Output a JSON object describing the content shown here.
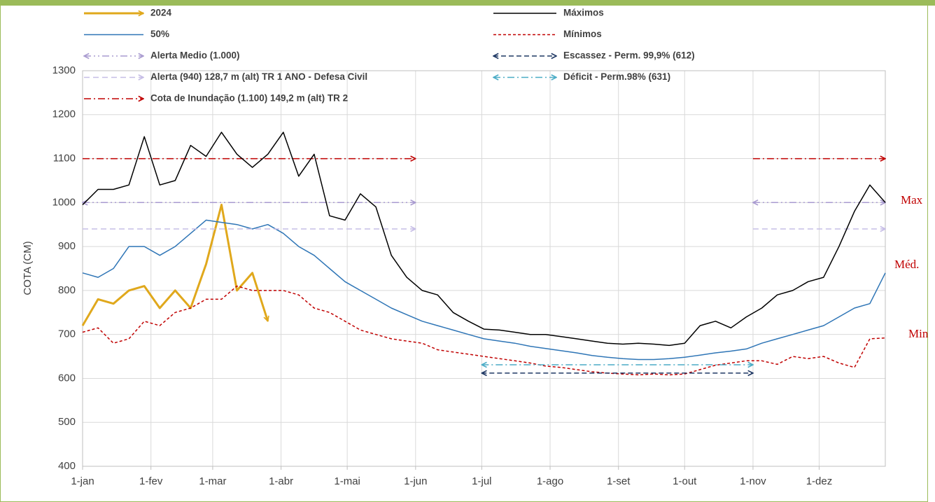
{
  "chart_data": {
    "type": "line",
    "y_label": "COTA (CM)",
    "xlim": [
      1,
      365
    ],
    "xticks": [
      {
        "value": 1,
        "label": "1-jan"
      },
      {
        "value": 32,
        "label": "1-fev"
      },
      {
        "value": 60,
        "label": "1-mar"
      },
      {
        "value": 91,
        "label": "1-abr"
      },
      {
        "value": 121,
        "label": "1-mai"
      },
      {
        "value": 152,
        "label": "1-jun"
      },
      {
        "value": 182,
        "label": "1-jul"
      },
      {
        "value": 213,
        "label": "1-ago"
      },
      {
        "value": 244,
        "label": "1-set"
      },
      {
        "value": 274,
        "label": "1-out"
      },
      {
        "value": 305,
        "label": "1-nov"
      },
      {
        "value": 335,
        "label": "1-dez"
      }
    ],
    "ylim": [
      400,
      1300
    ],
    "yticks": [
      400,
      500,
      600,
      700,
      800,
      900,
      1000,
      1100,
      1200,
      1300
    ],
    "grid": true,
    "series": [
      {
        "name": "2024",
        "color": "#e0a81c",
        "width": 3,
        "dash": "none",
        "arrows": "end",
        "x": [
          1,
          8,
          15,
          22,
          29,
          36,
          43,
          50,
          57,
          64,
          71,
          78,
          85
        ],
        "values": [
          720,
          780,
          770,
          800,
          810,
          760,
          800,
          760,
          860,
          995,
          800,
          840,
          730
        ]
      },
      {
        "name": "50%",
        "color": "#2e75b6",
        "width": 1.5,
        "dash": "none",
        "arrows": "none",
        "x": [
          1,
          8,
          15,
          22,
          29,
          36,
          43,
          50,
          57,
          64,
          71,
          78,
          85,
          92,
          99,
          106,
          113,
          120,
          127,
          134,
          141,
          148,
          155,
          162,
          169,
          176,
          183,
          190,
          197,
          204,
          211,
          218,
          225,
          232,
          239,
          246,
          253,
          260,
          267,
          274,
          281,
          288,
          295,
          302,
          309,
          316,
          323,
          330,
          337,
          344,
          351,
          358,
          365
        ],
        "values": [
          840,
          830,
          850,
          900,
          900,
          880,
          900,
          930,
          960,
          955,
          950,
          940,
          950,
          930,
          900,
          880,
          850,
          820,
          800,
          780,
          760,
          745,
          730,
          720,
          710,
          700,
          690,
          685,
          680,
          673,
          668,
          663,
          658,
          652,
          648,
          645,
          643,
          643,
          645,
          648,
          653,
          658,
          662,
          667,
          680,
          690,
          700,
          710,
          720,
          740,
          760,
          770,
          840
        ]
      },
      {
        "name": "Alerta Medio (1.000)",
        "color": "#a99bd0",
        "width": 1.5,
        "dash": "10,4,2,4,2,4",
        "arrows": "both",
        "x": [
          1,
          152,
          228,
          305,
          365
        ],
        "values": [
          1000,
          1000,
          null,
          1000,
          1000
        ]
      },
      {
        "name": "Alerta   (940) 128,7 m (alt) TR  1 ANO - Defesa Civil",
        "color": "#c6bde6",
        "width": 1.5,
        "dash": "8,5",
        "arrows": "end",
        "x": [
          1,
          152,
          228,
          305,
          365
        ],
        "values": [
          940,
          940,
          null,
          940,
          940
        ]
      },
      {
        "name": "Cota de Inundação (1.100) 149,2 m (alt) TR 2",
        "color": "#c00000",
        "width": 1.5,
        "dash": "10,4,2,4",
        "arrows": "end",
        "x": [
          1,
          152,
          228,
          305,
          365
        ],
        "values": [
          1100,
          1100,
          null,
          1100,
          1100
        ]
      },
      {
        "name": "Máximos",
        "color": "#000000",
        "width": 1.5,
        "dash": "none",
        "arrows": "none",
        "x": [
          1,
          8,
          15,
          22,
          29,
          36,
          43,
          50,
          57,
          64,
          71,
          78,
          85,
          92,
          99,
          106,
          113,
          120,
          127,
          134,
          141,
          148,
          155,
          162,
          169,
          176,
          183,
          190,
          197,
          204,
          211,
          218,
          225,
          232,
          239,
          246,
          253,
          260,
          267,
          274,
          281,
          288,
          295,
          302,
          309,
          316,
          323,
          330,
          337,
          344,
          351,
          358,
          365
        ],
        "values": [
          995,
          1030,
          1030,
          1040,
          1150,
          1040,
          1050,
          1130,
          1105,
          1160,
          1110,
          1080,
          1110,
          1160,
          1060,
          1110,
          970,
          960,
          1020,
          990,
          880,
          830,
          800,
          790,
          750,
          730,
          712,
          710,
          705,
          700,
          700,
          695,
          690,
          685,
          680,
          678,
          680,
          678,
          675,
          680,
          720,
          730,
          715,
          740,
          760,
          790,
          800,
          820,
          830,
          900,
          980,
          1040,
          1000
        ]
      },
      {
        "name": "Mínimos",
        "color": "#c00000",
        "width": 1.5,
        "dash": "4,3",
        "arrows": "none",
        "x": [
          1,
          8,
          15,
          22,
          29,
          36,
          43,
          50,
          57,
          64,
          71,
          78,
          85,
          92,
          99,
          106,
          113,
          120,
          127,
          134,
          141,
          148,
          155,
          162,
          169,
          176,
          183,
          190,
          197,
          204,
          211,
          218,
          225,
          232,
          239,
          246,
          253,
          260,
          267,
          274,
          281,
          288,
          295,
          302,
          309,
          316,
          323,
          330,
          337,
          344,
          351,
          358,
          365
        ],
        "values": [
          705,
          715,
          680,
          690,
          730,
          720,
          750,
          760,
          780,
          780,
          810,
          800,
          800,
          800,
          790,
          760,
          750,
          730,
          710,
          700,
          690,
          685,
          680,
          665,
          660,
          655,
          650,
          645,
          640,
          635,
          628,
          625,
          620,
          615,
          612,
          610,
          608,
          610,
          608,
          610,
          620,
          630,
          635,
          640,
          640,
          632,
          650,
          645,
          650,
          635,
          625,
          690,
          692
        ]
      },
      {
        "name": "Escassez - Perm. 99,9% (612)",
        "color": "#1f3864",
        "width": 1.5,
        "dash": "7,4",
        "arrows": "both",
        "x": [
          182,
          305
        ],
        "values": [
          612,
          612
        ]
      },
      {
        "name": "Déficit - Perm.98% (631)",
        "color": "#4bacc6",
        "width": 1.5,
        "dash": "10,4,2,4",
        "arrows": "both",
        "x": [
          182,
          305
        ],
        "values": [
          631,
          631
        ]
      }
    ],
    "annotations": [
      "Max",
      "Méd.",
      "Min"
    ]
  }
}
